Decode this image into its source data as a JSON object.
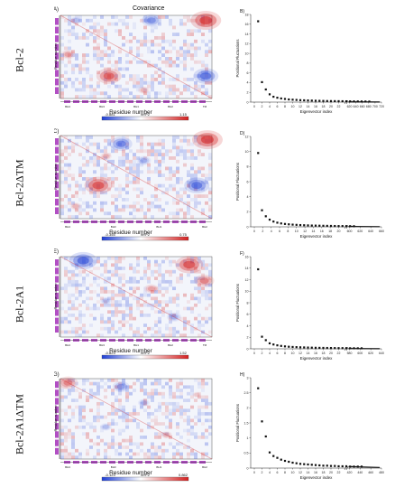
{
  "row_labels": [
    "Bcl-2",
    "Bcl-2ΔTM",
    "Bcl-2A1",
    "Bcl-2A1ΔTM"
  ],
  "cov_title": "Covariance",
  "res_ylabel": "Residue number",
  "res_xlabel": "Residue number",
  "colors": {
    "neg": "#1f3fd6",
    "pos": "#d42020",
    "helix": "#b24fc4"
  },
  "covariance_panels": [
    {
      "letter": "A)",
      "cb_min": "-0.881",
      "cb_unit": "nm^2",
      "cb_max": "1.15",
      "hot": [
        [
          0.96,
          0.06,
          1.0
        ],
        [
          0.6,
          0.06,
          -0.6
        ],
        [
          0.1,
          0.06,
          -0.3
        ],
        [
          0.32,
          0.73,
          0.8
        ],
        [
          0.96,
          0.73,
          -0.8
        ],
        [
          0.05,
          0.47,
          0.4
        ],
        [
          0.55,
          0.9,
          0.3
        ]
      ],
      "bars": [
        "BH4",
        "BH3",
        "BH1",
        "BH2",
        "TM"
      ]
    },
    {
      "letter": "C)",
      "cb_min": "-0.355",
      "cb_unit": "nm^2",
      "cb_max": "0.75",
      "hot": [
        [
          0.97,
          0.05,
          1.0
        ],
        [
          0.4,
          0.1,
          -0.7
        ],
        [
          0.25,
          0.6,
          0.9
        ],
        [
          0.9,
          0.6,
          -0.8
        ],
        [
          0.55,
          0.3,
          -0.4
        ],
        [
          0.1,
          0.85,
          0.3
        ],
        [
          0.3,
          0.25,
          0.3
        ]
      ],
      "bars": [
        "BH4",
        "BH3",
        "BH1",
        "BH2"
      ]
    },
    {
      "letter": "E)",
      "cb_min": "-0.823",
      "cb_unit": "nm^2",
      "cb_max": "1.52",
      "hot": [
        [
          0.15,
          0.05,
          -0.9
        ],
        [
          0.85,
          0.1,
          0.9
        ],
        [
          0.6,
          0.4,
          0.4
        ],
        [
          0.3,
          0.55,
          -0.3
        ],
        [
          0.95,
          0.3,
          0.6
        ],
        [
          0.75,
          0.75,
          -0.4
        ]
      ],
      "bars": [
        "BH4",
        "BH3",
        "BH1",
        "BH2",
        "TM"
      ]
    },
    {
      "letter": "G)",
      "cb_min": "-0.123",
      "cb_unit": "nm^2",
      "cb_max": "0.862",
      "hot": [
        [
          0.05,
          0.05,
          0.6
        ],
        [
          0.4,
          0.1,
          -0.5
        ],
        [
          0.3,
          0.6,
          -0.3
        ],
        [
          0.7,
          0.7,
          0.3
        ],
        [
          0.55,
          0.3,
          -0.3
        ],
        [
          0.9,
          0.2,
          0.2
        ]
      ],
      "bars": [
        "BH4",
        "BH3",
        "BH1",
        "BH2"
      ]
    }
  ],
  "chart_data": [
    {
      "type": "scatter",
      "title": "",
      "panel": "B)",
      "xlabel": "Eigenvector index",
      "ylabel": "Positional Fluctuations",
      "xlim": [
        0,
        720
      ],
      "ylim": [
        0,
        18
      ],
      "yticks": [
        "0",
        "2",
        "4",
        "6",
        "8",
        "10",
        "12",
        "14",
        "16",
        "18"
      ],
      "xticks": [
        "0",
        "2",
        "4",
        "6",
        "8",
        "10",
        "12",
        "14",
        "16",
        "18",
        "20",
        "22",
        "620",
        "640",
        "660",
        "680",
        "700",
        "720"
      ],
      "x": [
        1,
        2,
        3,
        4,
        5,
        6,
        7,
        8,
        9,
        10,
        11,
        12,
        13,
        14,
        15,
        16,
        17,
        18,
        19,
        20,
        21,
        22,
        23,
        24,
        25,
        26,
        27,
        28,
        29,
        30
      ],
      "y": [
        16.6,
        4.1,
        2.6,
        1.6,
        1.1,
        0.9,
        0.75,
        0.65,
        0.55,
        0.5,
        0.45,
        0.4,
        0.37,
        0.34,
        0.31,
        0.28,
        0.26,
        0.24,
        0.22,
        0.21,
        0.2,
        0.19,
        0.18,
        0.17,
        0.16,
        0.15,
        0.14,
        0.13,
        0.12,
        0.11
      ]
    },
    {
      "type": "scatter",
      "title": "",
      "panel": "D)",
      "xlabel": "Eigenvector index",
      "ylabel": "Positional Fluctuations",
      "xlim": [
        0,
        660
      ],
      "ylim": [
        0,
        12
      ],
      "yticks": [
        "0",
        "2",
        "4",
        "6",
        "8",
        "10",
        "12"
      ],
      "xticks": [
        "0",
        "2",
        "4",
        "6",
        "8",
        "10",
        "12",
        "14",
        "16",
        "18",
        "20",
        "600",
        "620",
        "640",
        "660"
      ],
      "x": [
        1,
        2,
        3,
        4,
        5,
        6,
        7,
        8,
        9,
        10,
        11,
        12,
        13,
        14,
        15,
        16,
        17,
        18,
        19,
        20,
        21,
        22,
        23,
        24,
        25,
        26
      ],
      "y": [
        9.8,
        2.2,
        1.4,
        0.95,
        0.7,
        0.55,
        0.45,
        0.38,
        0.33,
        0.29,
        0.26,
        0.23,
        0.21,
        0.19,
        0.17,
        0.16,
        0.15,
        0.14,
        0.13,
        0.12,
        0.11,
        0.1,
        0.1,
        0.09,
        0.09,
        0.08
      ]
    },
    {
      "type": "scatter",
      "title": "",
      "panel": "F)",
      "xlabel": "Eigenvector index",
      "ylabel": "Positional Fluctuations",
      "xlim": [
        0,
        640
      ],
      "ylim": [
        0,
        16
      ],
      "yticks": [
        "0",
        "2",
        "4",
        "6",
        "8",
        "10",
        "12",
        "14",
        "16"
      ],
      "xticks": [
        "0",
        "2",
        "4",
        "6",
        "8",
        "10",
        "12",
        "14",
        "16",
        "18",
        "20",
        "22",
        "580",
        "600",
        "620",
        "640"
      ],
      "x": [
        1,
        2,
        3,
        4,
        5,
        6,
        7,
        8,
        9,
        10,
        11,
        12,
        13,
        14,
        15,
        16,
        17,
        18,
        19,
        20,
        21,
        22,
        23,
        24,
        25,
        26,
        27,
        28
      ],
      "y": [
        13.8,
        2.1,
        1.5,
        0.95,
        0.75,
        0.6,
        0.5,
        0.42,
        0.36,
        0.32,
        0.29,
        0.26,
        0.24,
        0.22,
        0.2,
        0.18,
        0.17,
        0.16,
        0.15,
        0.14,
        0.13,
        0.12,
        0.12,
        0.11,
        0.1,
        0.1,
        0.09,
        0.09
      ]
    },
    {
      "type": "scatter",
      "title": "",
      "panel": "H)",
      "xlabel": "Eigenvector index",
      "ylabel": "Positional Fluctuations",
      "xlim": [
        0,
        480
      ],
      "ylim": [
        0,
        3
      ],
      "yticks": [
        "0",
        "0.5",
        "1",
        "1.5",
        "2",
        "2.5",
        "3"
      ],
      "xticks": [
        "0",
        "2",
        "4",
        "6",
        "8",
        "10",
        "12",
        "14",
        "16",
        "18",
        "20",
        "22",
        "420",
        "440",
        "460",
        "480"
      ],
      "x": [
        1,
        2,
        3,
        4,
        5,
        6,
        7,
        8,
        9,
        10,
        11,
        12,
        13,
        14,
        15,
        16,
        17,
        18,
        19,
        20,
        21,
        22,
        23,
        24,
        25,
        26,
        27,
        28
      ],
      "y": [
        2.65,
        1.55,
        1.05,
        0.52,
        0.4,
        0.34,
        0.28,
        0.24,
        0.21,
        0.18,
        0.16,
        0.14,
        0.13,
        0.12,
        0.11,
        0.1,
        0.09,
        0.08,
        0.08,
        0.07,
        0.07,
        0.06,
        0.06,
        0.06,
        0.05,
        0.05,
        0.05,
        0.05
      ]
    }
  ]
}
